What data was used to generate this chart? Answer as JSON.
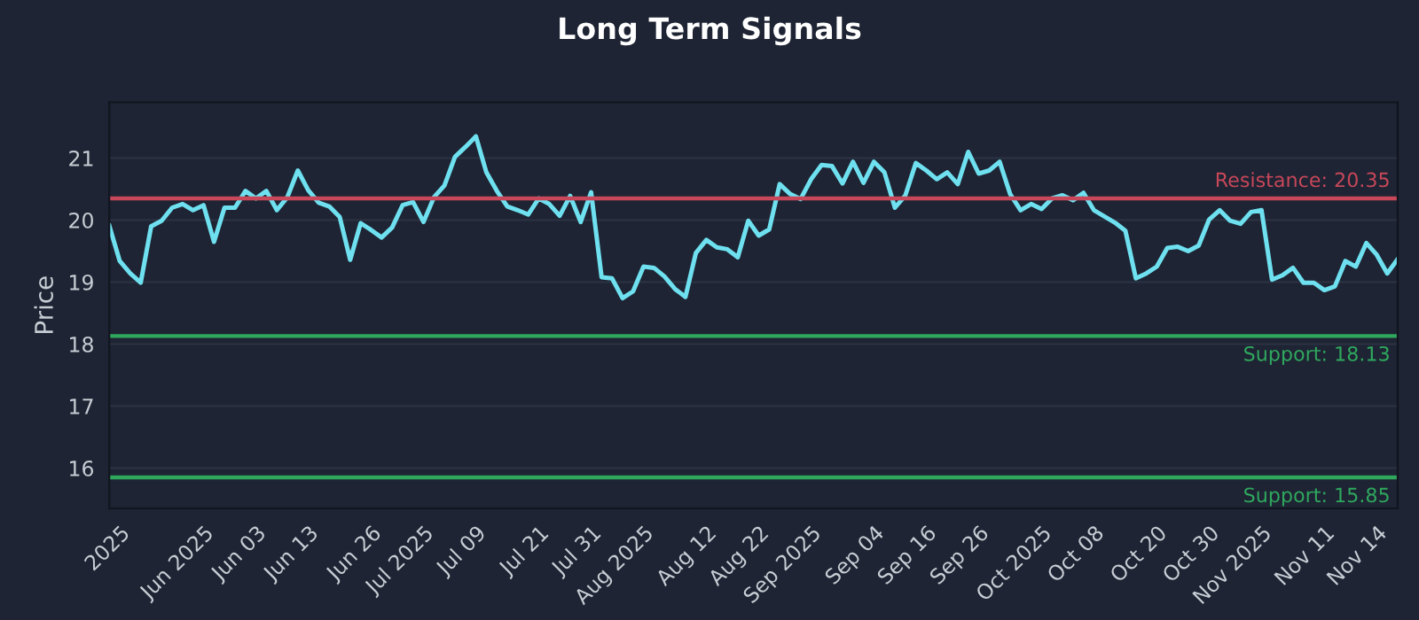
{
  "chart_data": {
    "type": "line",
    "title": "Long Term Signals",
    "ylabel": "Price",
    "categories": [
      null,
      "2025",
      null,
      null,
      null,
      null,
      null,
      null,
      null,
      "Jun 2025",
      null,
      null,
      null,
      null,
      "Jun 03",
      null,
      null,
      null,
      null,
      "Jun 13",
      null,
      null,
      null,
      null,
      null,
      "Jun 26",
      null,
      null,
      null,
      null,
      "Jul 2025",
      null,
      null,
      null,
      null,
      "Jul 09",
      null,
      null,
      null,
      null,
      null,
      "Jul 21",
      null,
      null,
      null,
      null,
      "Jul 31",
      null,
      null,
      null,
      null,
      "Aug 2025",
      null,
      null,
      null,
      null,
      null,
      "Aug 12",
      null,
      null,
      null,
      null,
      "Aug 22",
      null,
      null,
      null,
      null,
      "Sep 2025",
      null,
      null,
      null,
      null,
      null,
      "Sep 04",
      null,
      null,
      null,
      null,
      "Sep 16",
      null,
      null,
      null,
      null,
      "Sep 26",
      null,
      null,
      null,
      null,
      null,
      "Oct 2025",
      null,
      null,
      null,
      null,
      "Oct 08",
      null,
      null,
      null,
      null,
      null,
      "Oct 20",
      null,
      null,
      null,
      null,
      "Oct 30",
      null,
      null,
      null,
      null,
      "Nov 2025",
      null,
      null,
      null,
      null,
      null,
      "Nov 11",
      null,
      null,
      null,
      null,
      "Nov 14",
      null,
      null
    ],
    "series": [
      {
        "color": "#6ee0ef",
        "values": [
          19.91,
          19.34,
          19.14,
          18.99,
          19.9,
          19.99,
          20.2,
          20.26,
          20.16,
          20.24,
          19.65,
          20.2,
          20.2,
          20.47,
          20.35,
          20.47,
          20.16,
          20.37,
          20.8,
          20.48,
          20.28,
          20.22,
          20.05,
          19.36,
          19.95,
          19.84,
          19.72,
          19.88,
          20.24,
          20.29,
          19.97,
          20.37,
          20.56,
          21.02,
          21.18,
          21.35,
          20.77,
          20.47,
          20.22,
          20.16,
          20.09,
          20.35,
          20.26,
          20.07,
          20.39,
          19.97,
          20.45,
          19.08,
          19.06,
          18.74,
          18.85,
          19.25,
          19.23,
          19.09,
          18.89,
          18.76,
          19.47,
          19.68,
          19.56,
          19.53,
          19.4,
          19.99,
          19.75,
          19.85,
          20.58,
          20.42,
          20.34,
          20.66,
          20.89,
          20.87,
          20.59,
          20.94,
          20.6,
          20.94,
          20.77,
          20.2,
          20.4,
          20.92,
          20.8,
          20.66,
          20.77,
          20.58,
          21.1,
          20.75,
          20.8,
          20.94,
          20.42,
          20.16,
          20.26,
          20.18,
          20.35,
          20.4,
          20.32,
          20.44,
          20.16,
          20.06,
          19.96,
          19.83,
          19.06,
          19.14,
          19.25,
          19.55,
          19.57,
          19.5,
          19.59,
          20.01,
          20.16,
          19.99,
          19.94,
          20.13,
          20.16,
          19.04,
          19.11,
          19.23,
          18.99,
          18.99,
          18.87,
          18.93,
          19.34,
          19.25,
          19.63,
          19.44,
          19.14,
          19.37
        ]
      }
    ],
    "ylim": [
      15.35,
      21.9
    ],
    "yticks": [
      16,
      17,
      18,
      19,
      20,
      21
    ],
    "ref_lines": [
      {
        "axis": "y",
        "value": 20.35,
        "label": "Resistance: 20.35",
        "color": "#c8475a"
      },
      {
        "axis": "y",
        "value": 18.13,
        "label": "Support: 18.13",
        "color": "#2fa85e"
      },
      {
        "axis": "y",
        "value": 15.85,
        "label": "Support: 15.85",
        "color": "#2fa85e"
      }
    ],
    "grid": "y",
    "legend": false,
    "marker": "none",
    "line_style": "solid"
  }
}
